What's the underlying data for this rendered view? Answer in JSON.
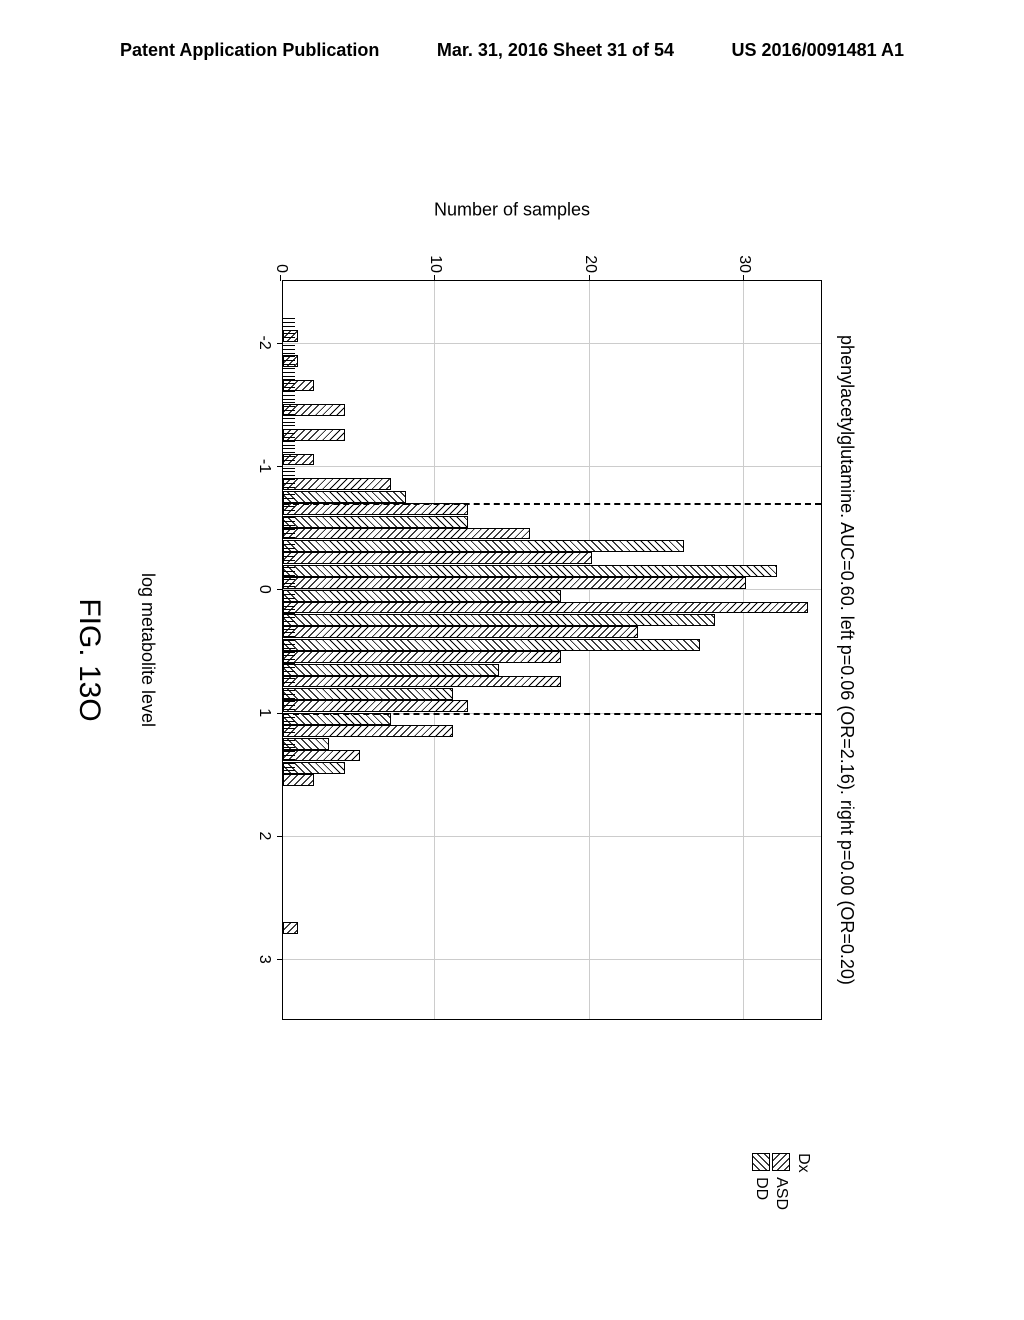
{
  "header": {
    "left": "Patent Application Publication",
    "center": "Mar. 31, 2016  Sheet 31 of 54",
    "right": "US 2016/0091481 A1"
  },
  "chart": {
    "type": "histogram",
    "title_text": "phenylacetylglutamine. AUC=0.60. left p=0.06 (OR=2.16). right p=0.00 (OR=0.20)",
    "xlabel": "log metabolite level",
    "ylabel": "Number of samples",
    "xlim": [
      -2.5,
      3.5
    ],
    "ylim": [
      0,
      35
    ],
    "xticks": [
      -2,
      -1,
      0,
      1,
      2,
      3
    ],
    "yticks": [
      0,
      10,
      20,
      30
    ],
    "grid_x": [
      -2,
      -1,
      0,
      1,
      2,
      3
    ],
    "grid_y": [
      10,
      20,
      30
    ],
    "cutoff_lines": [
      -0.7,
      1.0
    ],
    "bin_width": 0.2,
    "series": [
      {
        "name": "ASD",
        "pattern": "asd"
      },
      {
        "name": "DD",
        "pattern": "dd"
      }
    ],
    "legend_title": "Dx",
    "bars_asd": [
      [
        -2.1,
        1
      ],
      [
        -1.9,
        1
      ],
      [
        -1.7,
        2
      ],
      [
        -1.5,
        4
      ],
      [
        -1.3,
        4
      ],
      [
        -1.1,
        2
      ],
      [
        -0.9,
        7
      ],
      [
        -0.7,
        12
      ],
      [
        -0.5,
        16
      ],
      [
        -0.3,
        20
      ],
      [
        -0.1,
        30
      ],
      [
        0.1,
        34
      ],
      [
        0.3,
        23
      ],
      [
        0.5,
        18
      ],
      [
        0.7,
        18
      ],
      [
        0.9,
        12
      ],
      [
        1.1,
        11
      ],
      [
        1.3,
        5
      ],
      [
        1.5,
        2
      ],
      [
        2.7,
        1
      ]
    ],
    "bars_dd": [
      [
        -0.7,
        8
      ],
      [
        -0.5,
        12
      ],
      [
        -0.3,
        26
      ],
      [
        -0.1,
        32
      ],
      [
        0.1,
        18
      ],
      [
        0.3,
        28
      ],
      [
        0.5,
        27
      ],
      [
        0.7,
        14
      ],
      [
        0.9,
        11
      ],
      [
        1.1,
        7
      ],
      [
        1.3,
        3
      ],
      [
        1.5,
        4
      ]
    ],
    "rug_min": -2.2,
    "rug_max": 1.5,
    "rug_count": 120,
    "background_color": "#ffffff",
    "grid_color": "#cccccc",
    "axis_color": "#000000"
  },
  "figure_label": "FIG. 13O"
}
